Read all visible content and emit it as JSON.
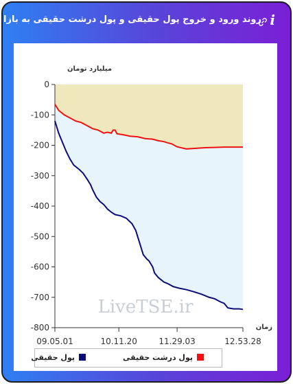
{
  "header": {
    "title": "روند ورود و خروج پول حقیقی و پول درشت حقیقی به بازار",
    "info_icon": "info-icon",
    "link_icon": "link-icon",
    "info_glyph": "i"
  },
  "chart_data": {
    "type": "line",
    "y_unit_label": "میلیارد تومان",
    "x_axis_label": "زمان",
    "ylim": [
      -800,
      0
    ],
    "y_ticks": [
      "0",
      "-100",
      "-200",
      "-300",
      "-400",
      "-500",
      "-600",
      "-700",
      "-800"
    ],
    "y_tick_values": [
      0,
      -100,
      -200,
      -300,
      -400,
      -500,
      -600,
      -700,
      -800
    ],
    "x_ticks": [
      "09.05.01",
      "10.11.20",
      "11.29.03",
      "12.53.28"
    ],
    "x_tick_values": [
      0,
      0.34,
      0.65,
      1.0
    ],
    "grid": false,
    "watermark": "LiveTSE.ir",
    "legend_position": "bottom",
    "series": [
      {
        "name": "پول حقیقی",
        "color": "#0b0b7a",
        "fill": "#e8f4fb",
        "x": [
          0,
          0.02,
          0.04,
          0.06,
          0.08,
          0.1,
          0.13,
          0.15,
          0.17,
          0.19,
          0.2,
          0.22,
          0.24,
          0.26,
          0.28,
          0.3,
          0.32,
          0.35,
          0.38,
          0.41,
          0.43,
          0.45,
          0.47,
          0.49,
          0.5,
          0.52,
          0.53,
          0.55,
          0.56,
          0.58,
          0.6,
          0.63,
          0.66,
          0.7,
          0.74,
          0.78,
          0.82,
          0.85,
          0.88,
          0.9,
          0.92,
          0.95,
          0.98,
          1.0
        ],
        "values": [
          -120,
          -160,
          -190,
          -220,
          -245,
          -265,
          -280,
          -292,
          -310,
          -330,
          -345,
          -370,
          -385,
          -395,
          -410,
          -420,
          -428,
          -432,
          -440,
          -458,
          -480,
          -520,
          -560,
          -575,
          -580,
          -600,
          -620,
          -635,
          -640,
          -650,
          -655,
          -665,
          -670,
          -675,
          -682,
          -690,
          -700,
          -705,
          -715,
          -720,
          -735,
          -738,
          -738,
          -740
        ]
      },
      {
        "name": "پول درشت حقیقی",
        "color": "#ee1111",
        "fill": "#efe8bd",
        "x": [
          0,
          0.02,
          0.05,
          0.08,
          0.11,
          0.14,
          0.17,
          0.2,
          0.23,
          0.26,
          0.28,
          0.3,
          0.31,
          0.32,
          0.33,
          0.36,
          0.4,
          0.44,
          0.48,
          0.52,
          0.55,
          0.58,
          0.6,
          0.62,
          0.65,
          0.7,
          0.75,
          0.8,
          0.85,
          0.9,
          0.95,
          1.0
        ],
        "values": [
          -65,
          -85,
          -100,
          -110,
          -120,
          -125,
          -135,
          -145,
          -150,
          -160,
          -157,
          -160,
          -150,
          -150,
          -162,
          -165,
          -170,
          -172,
          -178,
          -180,
          -185,
          -188,
          -192,
          -195,
          -205,
          -212,
          -210,
          -208,
          -207,
          -206,
          -206,
          -206
        ]
      }
    ]
  }
}
